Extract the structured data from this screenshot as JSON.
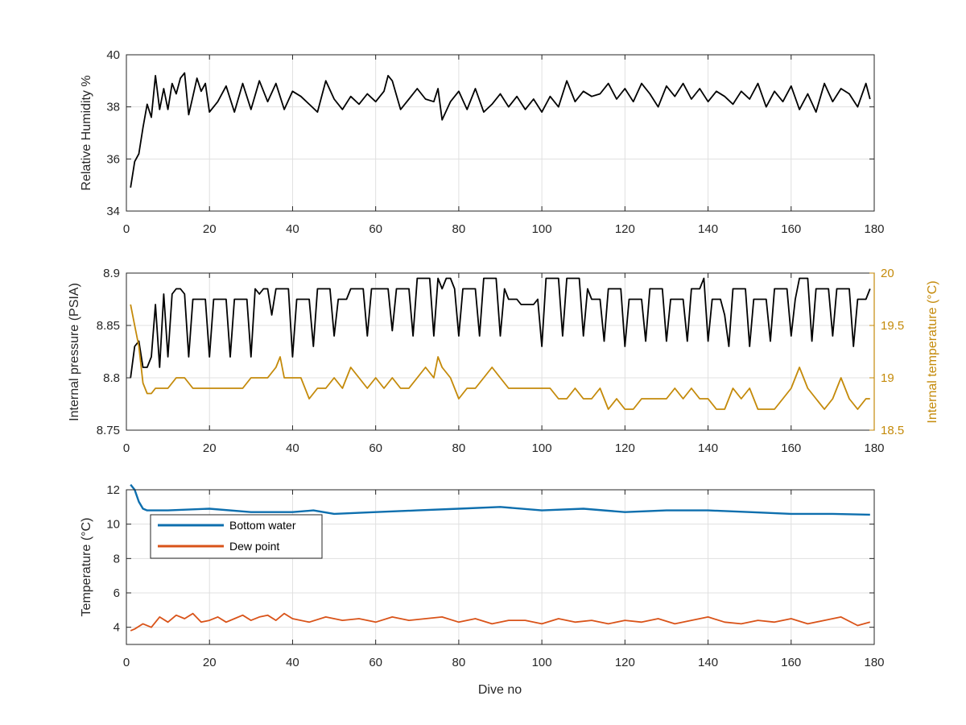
{
  "colors": {
    "black": "#000000",
    "gold": "#C48A0A",
    "blue": "#0E6FAE",
    "orange": "#D95319",
    "grid": "#E0E0E0",
    "axis": "#262626"
  },
  "chart_data": [
    {
      "type": "line",
      "xlabel": "",
      "ylabel": "Relative Humidity %",
      "xlim": [
        0,
        180
      ],
      "ylim": [
        34,
        40
      ],
      "xticks": [
        0,
        20,
        40,
        60,
        80,
        100,
        120,
        140,
        160,
        180
      ],
      "yticks": [
        34,
        36,
        38,
        40
      ],
      "grid": true,
      "series": [
        {
          "name": "",
          "color": "#000000",
          "x": [
            1,
            2,
            3,
            4,
            5,
            6,
            7,
            8,
            9,
            10,
            11,
            12,
            13,
            14,
            15,
            16,
            17,
            18,
            19,
            20,
            22,
            24,
            26,
            28,
            30,
            32,
            34,
            36,
            38,
            40,
            42,
            44,
            46,
            48,
            50,
            52,
            54,
            56,
            58,
            60,
            62,
            63,
            64,
            66,
            68,
            70,
            72,
            74,
            75,
            76,
            78,
            80,
            82,
            84,
            86,
            88,
            90,
            92,
            94,
            96,
            98,
            100,
            102,
            104,
            106,
            108,
            110,
            112,
            114,
            116,
            118,
            120,
            122,
            124,
            126,
            128,
            130,
            132,
            134,
            136,
            138,
            140,
            142,
            144,
            146,
            148,
            150,
            152,
            154,
            156,
            158,
            160,
            162,
            164,
            166,
            168,
            170,
            172,
            174,
            176,
            178,
            179
          ],
          "y": [
            34.9,
            35.9,
            36.2,
            37.2,
            38.1,
            37.6,
            39.2,
            37.9,
            38.7,
            37.9,
            38.9,
            38.5,
            39.1,
            39.3,
            37.7,
            38.4,
            39.1,
            38.6,
            38.9,
            37.8,
            38.2,
            38.8,
            37.8,
            38.9,
            37.9,
            39.0,
            38.2,
            38.9,
            37.9,
            38.6,
            38.4,
            38.1,
            37.8,
            39.0,
            38.3,
            37.9,
            38.4,
            38.1,
            38.5,
            38.2,
            38.6,
            39.2,
            39.0,
            37.9,
            38.3,
            38.7,
            38.3,
            38.2,
            38.7,
            37.5,
            38.2,
            38.6,
            37.9,
            38.7,
            37.8,
            38.1,
            38.5,
            38.0,
            38.4,
            37.9,
            38.3,
            37.8,
            38.4,
            38.0,
            39.0,
            38.2,
            38.6,
            38.4,
            38.5,
            38.9,
            38.3,
            38.7,
            38.2,
            38.9,
            38.5,
            38.0,
            38.8,
            38.4,
            38.9,
            38.3,
            38.7,
            38.2,
            38.6,
            38.4,
            38.1,
            38.6,
            38.3,
            38.9,
            38.0,
            38.6,
            38.2,
            38.8,
            37.9,
            38.5,
            37.8,
            38.9,
            38.2,
            38.7,
            38.5,
            38.0,
            38.9,
            38.3
          ]
        }
      ]
    },
    {
      "type": "line",
      "xlabel": "",
      "ylabel": "Internal pressure (PSIA)",
      "ylabel_right": "Internal temperature (°C)",
      "xlim": [
        0,
        180
      ],
      "ylim": [
        8.75,
        8.9
      ],
      "ylim_right": [
        18.5,
        20
      ],
      "xticks": [
        0,
        20,
        40,
        60,
        80,
        100,
        120,
        140,
        160,
        180
      ],
      "yticks": [
        8.75,
        8.8,
        8.85,
        8.9
      ],
      "yticks_right": [
        18.5,
        19,
        19.5,
        20
      ],
      "grid": true,
      "series": [
        {
          "name": "",
          "axis": "left",
          "color": "#000000",
          "x": [
            1,
            2,
            3,
            4,
            5,
            6,
            7,
            8,
            9,
            10,
            11,
            12,
            13,
            14,
            15,
            16,
            17,
            18,
            19,
            20,
            21,
            22,
            23,
            24,
            25,
            26,
            27,
            28,
            29,
            30,
            31,
            32,
            33,
            34,
            35,
            36,
            37,
            38,
            39,
            40,
            41,
            42,
            43,
            44,
            45,
            46,
            47,
            48,
            49,
            50,
            51,
            52,
            53,
            54,
            55,
            56,
            57,
            58,
            59,
            60,
            61,
            62,
            63,
            64,
            65,
            66,
            67,
            68,
            69,
            70,
            71,
            72,
            73,
            74,
            75,
            76,
            77,
            78,
            79,
            80,
            81,
            82,
            83,
            84,
            85,
            86,
            87,
            88,
            89,
            90,
            91,
            92,
            93,
            94,
            95,
            96,
            97,
            98,
            99,
            100,
            101,
            102,
            103,
            104,
            105,
            106,
            107,
            108,
            109,
            110,
            111,
            112,
            113,
            114,
            115,
            116,
            117,
            118,
            119,
            120,
            121,
            122,
            123,
            124,
            125,
            126,
            127,
            128,
            129,
            130,
            131,
            132,
            133,
            134,
            135,
            136,
            137,
            138,
            139,
            140,
            141,
            142,
            143,
            144,
            145,
            146,
            147,
            148,
            149,
            150,
            151,
            152,
            153,
            154,
            155,
            156,
            157,
            158,
            159,
            160,
            161,
            162,
            163,
            164,
            165,
            166,
            167,
            168,
            169,
            170,
            171,
            172,
            173,
            174,
            175,
            176,
            177,
            178,
            179
          ],
          "y": [
            8.8,
            8.83,
            8.835,
            8.81,
            8.81,
            8.82,
            8.87,
            8.81,
            8.88,
            8.82,
            8.88,
            8.885,
            8.885,
            8.88,
            8.82,
            8.875,
            8.875,
            8.875,
            8.875,
            8.82,
            8.875,
            8.875,
            8.875,
            8.875,
            8.82,
            8.875,
            8.875,
            8.875,
            8.875,
            8.82,
            8.885,
            8.88,
            8.885,
            8.885,
            8.86,
            8.885,
            8.885,
            8.885,
            8.885,
            8.82,
            8.875,
            8.875,
            8.875,
            8.875,
            8.83,
            8.885,
            8.885,
            8.885,
            8.885,
            8.84,
            8.875,
            8.875,
            8.875,
            8.885,
            8.885,
            8.885,
            8.885,
            8.84,
            8.885,
            8.885,
            8.885,
            8.885,
            8.885,
            8.845,
            8.885,
            8.885,
            8.885,
            8.885,
            8.84,
            8.895,
            8.895,
            8.895,
            8.895,
            8.84,
            8.895,
            8.885,
            8.895,
            8.895,
            8.885,
            8.84,
            8.885,
            8.885,
            8.885,
            8.885,
            8.84,
            8.895,
            8.895,
            8.895,
            8.895,
            8.84,
            8.885,
            8.875,
            8.875,
            8.875,
            8.87,
            8.87,
            8.87,
            8.87,
            8.875,
            8.83,
            8.895,
            8.895,
            8.895,
            8.895,
            8.84,
            8.895,
            8.895,
            8.895,
            8.895,
            8.84,
            8.885,
            8.875,
            8.875,
            8.875,
            8.835,
            8.885,
            8.885,
            8.885,
            8.885,
            8.83,
            8.875,
            8.875,
            8.875,
            8.875,
            8.835,
            8.885,
            8.885,
            8.885,
            8.885,
            8.835,
            8.875,
            8.875,
            8.875,
            8.875,
            8.835,
            8.885,
            8.885,
            8.885,
            8.895,
            8.835,
            8.875,
            8.875,
            8.875,
            8.86,
            8.83,
            8.885,
            8.885,
            8.885,
            8.885,
            8.83,
            8.875,
            8.875,
            8.875,
            8.875,
            8.835,
            8.885,
            8.885,
            8.885,
            8.885,
            8.84,
            8.875,
            8.895,
            8.895,
            8.895,
            8.835,
            8.885,
            8.885,
            8.885,
            8.885,
            8.84,
            8.885,
            8.885,
            8.885,
            8.885,
            8.83,
            8.875,
            8.875,
            8.875,
            8.885
          ]
        },
        {
          "name": "",
          "axis": "right",
          "color": "#C48A0A",
          "x": [
            1,
            2,
            3,
            4,
            5,
            6,
            7,
            8,
            10,
            12,
            14,
            16,
            18,
            20,
            22,
            24,
            26,
            28,
            30,
            32,
            34,
            36,
            37,
            38,
            40,
            42,
            44,
            46,
            48,
            50,
            52,
            54,
            56,
            58,
            60,
            62,
            64,
            66,
            68,
            70,
            72,
            74,
            75,
            76,
            78,
            80,
            82,
            84,
            86,
            88,
            90,
            92,
            94,
            96,
            98,
            100,
            102,
            104,
            106,
            108,
            110,
            112,
            114,
            116,
            118,
            120,
            122,
            124,
            126,
            128,
            130,
            132,
            134,
            136,
            138,
            140,
            142,
            144,
            146,
            148,
            150,
            152,
            154,
            156,
            158,
            160,
            162,
            164,
            166,
            168,
            170,
            172,
            174,
            176,
            178,
            179
          ],
          "y": [
            19.7,
            19.5,
            19.3,
            18.95,
            18.85,
            18.85,
            18.9,
            18.9,
            18.9,
            19.0,
            19.0,
            18.9,
            18.9,
            18.9,
            18.9,
            18.9,
            18.9,
            18.9,
            19.0,
            19.0,
            19.0,
            19.1,
            19.2,
            19.0,
            19.0,
            19.0,
            18.8,
            18.9,
            18.9,
            19.0,
            18.9,
            19.1,
            19.0,
            18.9,
            19.0,
            18.9,
            19.0,
            18.9,
            18.9,
            19.0,
            19.1,
            19.0,
            19.2,
            19.1,
            19.0,
            18.8,
            18.9,
            18.9,
            19.0,
            19.1,
            19.0,
            18.9,
            18.9,
            18.9,
            18.9,
            18.9,
            18.9,
            18.8,
            18.8,
            18.9,
            18.8,
            18.8,
            18.9,
            18.7,
            18.8,
            18.7,
            18.7,
            18.8,
            18.8,
            18.8,
            18.8,
            18.9,
            18.8,
            18.9,
            18.8,
            18.8,
            18.7,
            18.7,
            18.9,
            18.8,
            18.9,
            18.7,
            18.7,
            18.7,
            18.8,
            18.9,
            19.1,
            18.9,
            18.8,
            18.7,
            18.8,
            19.0,
            18.8,
            18.7,
            18.8,
            18.8
          ]
        }
      ]
    },
    {
      "type": "line",
      "xlabel": "Dive no",
      "ylabel": "Temperature (°C)",
      "xlim": [
        0,
        180
      ],
      "ylim": [
        3,
        12
      ],
      "xticks": [
        0,
        20,
        40,
        60,
        80,
        100,
        120,
        140,
        160,
        180
      ],
      "yticks": [
        4,
        6,
        8,
        10,
        12
      ],
      "grid": true,
      "legend": "top-left",
      "series": [
        {
          "name": "Bottom water",
          "color": "#0E6FAE",
          "x": [
            1,
            2,
            3,
            4,
            5,
            10,
            20,
            30,
            40,
            45,
            50,
            60,
            70,
            80,
            90,
            100,
            110,
            120,
            130,
            140,
            150,
            160,
            170,
            179
          ],
          "y": [
            12.3,
            12.0,
            11.3,
            10.9,
            10.8,
            10.8,
            10.9,
            10.7,
            10.7,
            10.8,
            10.6,
            10.7,
            10.8,
            10.9,
            11.0,
            10.8,
            10.9,
            10.7,
            10.8,
            10.8,
            10.7,
            10.6,
            10.6,
            10.55
          ]
        },
        {
          "name": "Dew point",
          "color": "#D95319",
          "x": [
            1,
            2,
            4,
            6,
            8,
            10,
            12,
            14,
            16,
            18,
            20,
            22,
            24,
            26,
            28,
            30,
            32,
            34,
            36,
            38,
            40,
            44,
            48,
            52,
            56,
            60,
            64,
            68,
            72,
            76,
            80,
            84,
            88,
            92,
            96,
            100,
            104,
            108,
            112,
            116,
            120,
            124,
            128,
            132,
            136,
            140,
            144,
            148,
            152,
            156,
            160,
            164,
            168,
            172,
            176,
            179
          ],
          "y": [
            3.8,
            3.9,
            4.2,
            4.0,
            4.6,
            4.3,
            4.7,
            4.5,
            4.8,
            4.3,
            4.4,
            4.6,
            4.3,
            4.5,
            4.7,
            4.4,
            4.6,
            4.7,
            4.4,
            4.8,
            4.5,
            4.3,
            4.6,
            4.4,
            4.5,
            4.3,
            4.6,
            4.4,
            4.5,
            4.6,
            4.3,
            4.5,
            4.2,
            4.4,
            4.4,
            4.2,
            4.5,
            4.3,
            4.4,
            4.2,
            4.4,
            4.3,
            4.5,
            4.2,
            4.4,
            4.6,
            4.3,
            4.2,
            4.4,
            4.3,
            4.5,
            4.2,
            4.4,
            4.6,
            4.1,
            4.3
          ]
        }
      ]
    }
  ]
}
